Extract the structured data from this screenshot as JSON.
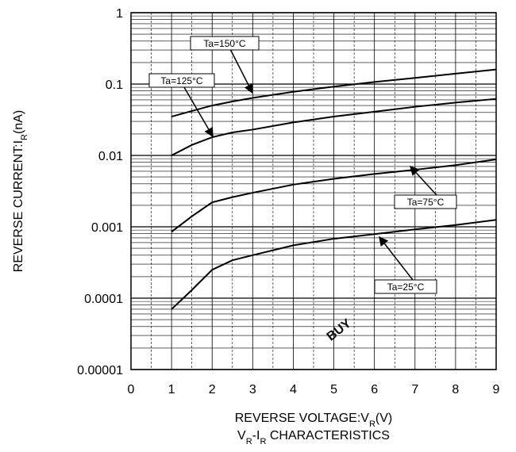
{
  "chart_data": {
    "type": "line",
    "title_parts": [
      {
        "text": "V"
      },
      {
        "text": "R",
        "sub": true
      },
      {
        "text": "-I"
      },
      {
        "text": "R",
        "sub": true
      },
      {
        "text": " CHARACTERISTICS"
      }
    ],
    "x_label_parts": [
      {
        "text": "REVERSE VOLTAGE:V"
      },
      {
        "text": "R",
        "sub": true
      },
      {
        "text": "(V)"
      }
    ],
    "y_label_parts": [
      {
        "text": "REVERSE CURRENT:I"
      },
      {
        "text": "R",
        "sub": true
      },
      {
        "text": "(nA)"
      }
    ],
    "x": [
      1,
      1.5,
      2,
      2.5,
      3,
      4,
      5,
      6,
      7,
      8,
      9
    ],
    "series": [
      {
        "name": "Ta=150°C",
        "color": "#000000",
        "values": [
          0.035,
          0.042,
          0.05,
          0.057,
          0.064,
          0.078,
          0.092,
          0.107,
          0.122,
          0.14,
          0.16
        ]
      },
      {
        "name": "Ta=125°C",
        "color": "#000000",
        "values": [
          0.01,
          0.014,
          0.018,
          0.021,
          0.023,
          0.029,
          0.035,
          0.041,
          0.048,
          0.055,
          0.062
        ]
      },
      {
        "name": "Ta=75°C",
        "color": "#000000",
        "values": [
          0.00085,
          0.0014,
          0.0022,
          0.0026,
          0.003,
          0.0039,
          0.0047,
          0.0055,
          0.0063,
          0.0073,
          0.0088
        ]
      },
      {
        "name": "Ta=25°C",
        "color": "#000000",
        "values": [
          7e-05,
          0.00013,
          0.00025,
          0.00034,
          0.0004,
          0.00055,
          0.00068,
          0.00079,
          0.00092,
          0.00106,
          0.00125
        ]
      }
    ],
    "xlim": [
      0,
      9
    ],
    "xticks": [
      0,
      1,
      2,
      3,
      4,
      5,
      6,
      7,
      8,
      9
    ],
    "ylim": [
      1e-05,
      1
    ],
    "yticks": [
      1e-05,
      0.0001,
      0.001,
      0.01,
      0.1,
      1
    ],
    "log_y": true,
    "grid": true,
    "watermark": "BUY"
  }
}
